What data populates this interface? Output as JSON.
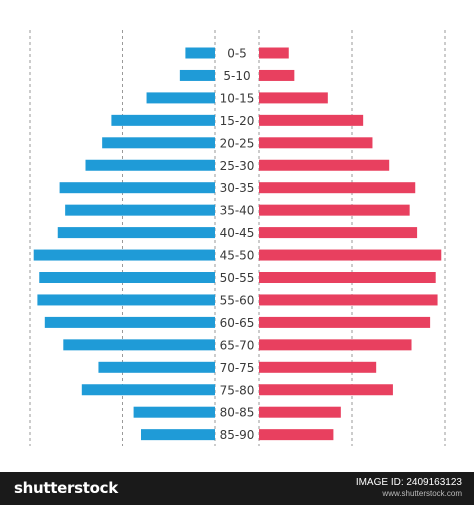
{
  "chart_data": {
    "type": "bar",
    "categories": [
      "0-5",
      "5-10",
      "10-15",
      "15-20",
      "20-25",
      "25-30",
      "30-35",
      "35-40",
      "40-45",
      "45-50",
      "50-55",
      "55-60",
      "60-65",
      "65-70",
      "70-75",
      "75-80",
      "80-85",
      "85-90"
    ],
    "series": [
      {
        "values": [
          16,
          19,
          37,
          56,
          61,
          70,
          84,
          81,
          85,
          98,
          95,
          96,
          92,
          82,
          63,
          72,
          44,
          40
        ]
      },
      {
        "values": [
          16,
          19,
          37,
          56,
          61,
          70,
          84,
          81,
          85,
          98,
          95,
          96,
          92,
          82,
          63,
          72,
          44,
          40
        ]
      }
    ],
    "xlim": [
      0,
      100
    ],
    "grid": true,
    "colors": {
      "left": "#1f9bd7",
      "right": "#e8405f",
      "label": "#3a3a3a",
      "grid": "#9a9a9a"
    }
  },
  "footer": {
    "logo": "shutterstock",
    "image_id": "IMAGE ID: 2409163123",
    "url": "www.shutterstock.com"
  },
  "colors": {
    "footer_bg": "#1a1a1a"
  }
}
